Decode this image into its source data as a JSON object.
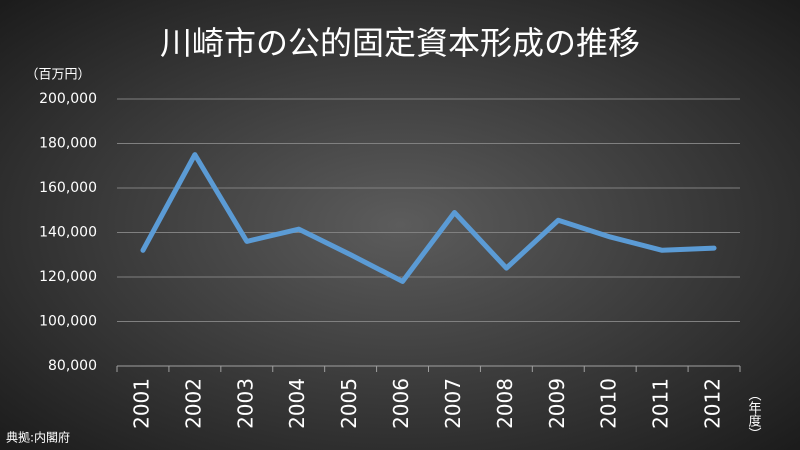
{
  "chart_data": {
    "type": "line",
    "title": "川崎市の公的固定資本形成の推移",
    "y_unit": "（百万円）",
    "x_unit": "（年度）",
    "source": "典拠:内閣府",
    "categories": [
      "2001",
      "2002",
      "2003",
      "2004",
      "2005",
      "2006",
      "2007",
      "2008",
      "2009",
      "2010",
      "2011",
      "2012"
    ],
    "series": [
      {
        "name": "公的固定資本形成",
        "color": "#5b9bd5",
        "values": [
          132000,
          175000,
          136000,
          141500,
          130000,
          118000,
          149000,
          124000,
          145500,
          138000,
          132000,
          133000
        ]
      }
    ],
    "ylim": [
      80000,
      200000
    ],
    "yticks": [
      {
        "value": 80000,
        "label": "80,000"
      },
      {
        "value": 100000,
        "label": "100,000"
      },
      {
        "value": 120000,
        "label": "120,000"
      },
      {
        "value": 140000,
        "label": "140,000"
      },
      {
        "value": 160000,
        "label": "160,000"
      },
      {
        "value": 180000,
        "label": "180,000"
      },
      {
        "value": 200000,
        "label": "200,000"
      }
    ],
    "grid": true
  }
}
